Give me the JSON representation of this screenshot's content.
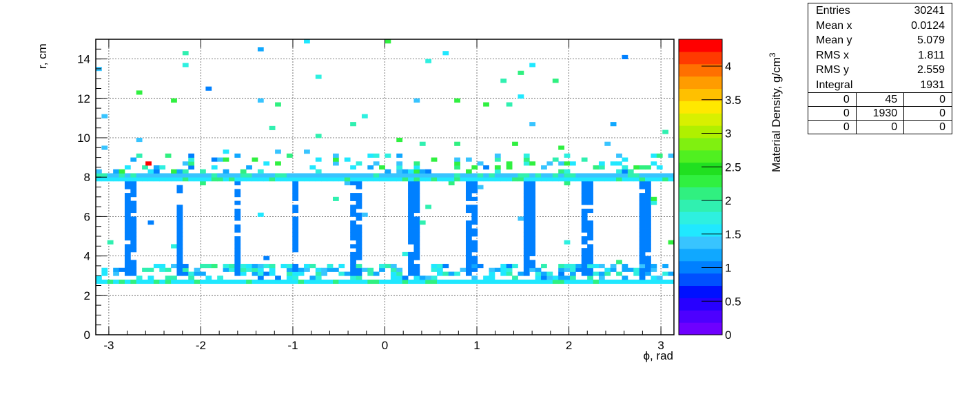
{
  "chart_data": {
    "type": "heatmap",
    "title": "",
    "xlabel": "ϕ, rad",
    "ylabel": "r, cm",
    "zlabel": "Material Density, g/cm",
    "zlabel_superscript": "3",
    "xlim": [
      -3.1416,
      3.1416
    ],
    "ylim": [
      0,
      15
    ],
    "zlim": [
      0,
      4.4
    ],
    "x_ticks": [
      -3,
      -2,
      -1,
      0,
      1,
      2,
      3
    ],
    "y_ticks": [
      0,
      2,
      4,
      6,
      8,
      10,
      12,
      14
    ],
    "z_ticks": [
      0,
      0.5,
      1,
      1.5,
      2,
      2.5,
      3,
      3.5,
      4
    ],
    "x_tick_labels": [
      "-3",
      "-2",
      "-1",
      "0",
      "1",
      "2",
      "3"
    ],
    "y_tick_labels": [
      "0",
      "2",
      "4",
      "6",
      "8",
      "10",
      "12",
      "14"
    ],
    "z_tick_labels": [
      "0",
      "0.5",
      "1",
      "1.5",
      "2",
      "2.5",
      "3",
      "3.5",
      "4"
    ],
    "grid": true,
    "palette": [
      "#6e00ff",
      "#4d00ff",
      "#2800ff",
      "#0010ff",
      "#0050ff",
      "#0080ff",
      "#10a8ff",
      "#38c4ff",
      "#20e8ff",
      "#2ef0e0",
      "#30f0b0",
      "#30f080",
      "#30f040",
      "#20e020",
      "#50f020",
      "#80f010",
      "#b0f000",
      "#d8f000",
      "#ffe800",
      "#ffc000",
      "#ff9c00",
      "#ff7000",
      "#ff3a00",
      "#ff0000"
    ],
    "bands": [
      {
        "r_min": 2.7,
        "r_max": 2.9,
        "density": 1.55
      },
      {
        "r_min": 7.8,
        "r_max": 8.0,
        "density": 1.55
      },
      {
        "r_min": 8.0,
        "r_max": 8.2,
        "density": 1.45
      }
    ],
    "vertical_supports_phi": [
      -2.75,
      -2.23,
      -1.6,
      -0.98,
      -0.33,
      0.3,
      0.93,
      1.57,
      2.2,
      2.82
    ],
    "vertical_supports_r": [
      3.0,
      8.0
    ],
    "vertical_support_density": 1.0,
    "scattered_density_range": [
      1.0,
      2.4
    ],
    "hotspot": {
      "phi": -2.57,
      "r": 8.7,
      "density": 4.3
    }
  },
  "stats": {
    "rows": [
      {
        "label": "Entries",
        "value": "30241"
      },
      {
        "label": "Mean x",
        "value": "0.0124"
      },
      {
        "label": "Mean y",
        "value": "5.079"
      },
      {
        "label": "RMS x",
        "value": "1.811"
      },
      {
        "label": "RMS y",
        "value": "2.559"
      },
      {
        "label": "Integral",
        "value": "1931"
      }
    ],
    "grid": [
      [
        "0",
        "45",
        "0"
      ],
      [
        "0",
        "1930",
        "0"
      ],
      [
        "0",
        "0",
        "0"
      ]
    ]
  }
}
